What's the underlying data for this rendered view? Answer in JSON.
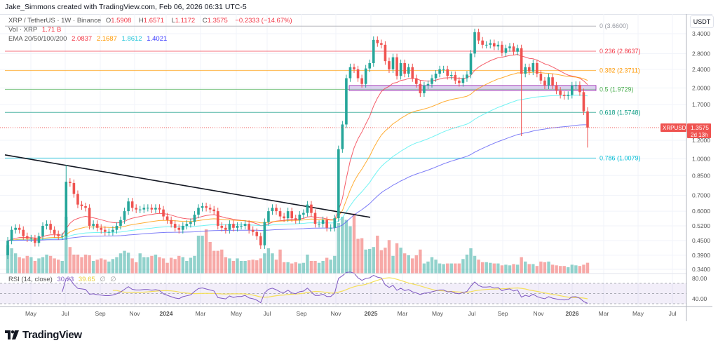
{
  "credit": "Jake_Simmons created with TradingView.com, Feb 06, 2026 06:31 UTC-5",
  "header": {
    "symbol": "XRP / TetherUS · 1W · Binance",
    "o_label": "O",
    "o": "1.5908",
    "h_label": "H",
    "h": "1.6571",
    "l_label": "L",
    "l": "1.1172",
    "c_label": "C",
    "c": "1.3575",
    "change": "−0.2333 (−14.67%)",
    "vol_label": "Vol · XRP",
    "vol": "1.71 B",
    "ema_label": "EMA 20/50/100/200",
    "ema20": "2.0837",
    "ema50": "2.1687",
    "ema100": "1.8612",
    "ema200": "1.4021"
  },
  "price_axis": {
    "currency": "USDT",
    "ticks": [
      "3.4000",
      "2.8000",
      "2.4000",
      "2.0000",
      "1.7000",
      "1.2000",
      "1.0000",
      "0.8500",
      "0.7000",
      "0.6000",
      "0.5200",
      "0.4500",
      "0.3900",
      "0.3400"
    ],
    "last_symbol": "XRPUSDT",
    "last_price": "1.3575",
    "countdown": "2d 13h"
  },
  "rsi": {
    "label": "RSI (14, close)",
    "value": "30.23",
    "ma_value": "39.65",
    "extra1": "∅",
    "extra2": "∅",
    "ticks": [
      "80.00",
      "40.00"
    ]
  },
  "time_axis": [
    "May",
    "Jul",
    "Sep",
    "Nov",
    "2024",
    "Mar",
    "May",
    "Jul",
    "Sep",
    "Nov",
    "2025",
    "Mar",
    "May",
    "Jul",
    "Sep",
    "Nov",
    "2026",
    "Mar",
    "May",
    "Jul"
  ],
  "fib_levels": [
    {
      "label": "0 (3.6600)",
      "price": 3.66,
      "color": "#9598a1"
    },
    {
      "label": "0.236 (2.8637)",
      "price": 2.8637,
      "color": "#f23645"
    },
    {
      "label": "0.382 (2.3711)",
      "price": 2.3711,
      "color": "#ff9800"
    },
    {
      "label": "0.5 (1.9729)",
      "price": 1.9729,
      "color": "#4caf50"
    },
    {
      "label": "0.618 (1.5748)",
      "price": 1.5748,
      "color": "#089981"
    },
    {
      "label": "0.786 (1.0079)",
      "price": 1.0079,
      "color": "#00bcd4"
    }
  ],
  "colors": {
    "up": "#26a69a",
    "down": "#ef5350",
    "ema20": "#f23645",
    "ema50": "#ff9800",
    "ema100": "#4ef0f0",
    "ema200": "#5b5bf5",
    "rsi": "#7e57c2",
    "rsi_ma": "#f5e05a",
    "trendline": "#131722",
    "zone": "#b39ddb"
  },
  "brand": "TradingView",
  "chart_data": {
    "type": "candlestick",
    "interval": "1W",
    "scale": "log",
    "ylim": [
      0.34,
      3.8
    ],
    "first_week": "2023-03-27",
    "first_open": 0.39,
    "closes": [
      0.45,
      0.5,
      0.51,
      0.5,
      0.47,
      0.46,
      0.46,
      0.44,
      0.47,
      0.52,
      0.53,
      0.5,
      0.48,
      0.47,
      0.47,
      0.8,
      0.79,
      0.71,
      0.64,
      0.63,
      0.62,
      0.52,
      0.53,
      0.51,
      0.5,
      0.49,
      0.49,
      0.5,
      0.52,
      0.55,
      0.6,
      0.66,
      0.62,
      0.61,
      0.61,
      0.62,
      0.62,
      0.61,
      0.62,
      0.61,
      0.57,
      0.55,
      0.53,
      0.51,
      0.5,
      0.52,
      0.53,
      0.54,
      0.58,
      0.62,
      0.63,
      0.62,
      0.61,
      0.6,
      0.52,
      0.51,
      0.5,
      0.53,
      0.51,
      0.52,
      0.52,
      0.53,
      0.5,
      0.49,
      0.47,
      0.43,
      0.54,
      0.6,
      0.62,
      0.6,
      0.57,
      0.56,
      0.6,
      0.56,
      0.55,
      0.58,
      0.59,
      0.64,
      0.59,
      0.53,
      0.53,
      0.55,
      0.51,
      0.51,
      0.56,
      1.1,
      1.4,
      2.2,
      2.45,
      2.4,
      2.2,
      2.08,
      2.42,
      2.55,
      3.2,
      3.1,
      3.05,
      2.6,
      2.4,
      2.7,
      2.25,
      2.55,
      2.3,
      2.45,
      2.2,
      2.08,
      1.9,
      2.05,
      2.08,
      2.2,
      2.3,
      2.4,
      2.4,
      2.25,
      2.27,
      2.15,
      2.1,
      2.2,
      2.28,
      2.8,
      3.45,
      3.18,
      3.05,
      3.05,
      3.1,
      3.0,
      3.05,
      2.82,
      2.95,
      3.0,
      2.85,
      2.95,
      2.3,
      2.45,
      2.35,
      2.55,
      2.3,
      2.15,
      2.05,
      2.22,
      2.05,
      1.95,
      1.87,
      1.85,
      1.87,
      2.05,
      2.06,
      1.92,
      1.5908,
      1.3575
    ],
    "notable_wicks": [
      {
        "week": "2023-07-10",
        "high": 0.94
      },
      {
        "week": "2025-10-06",
        "low": 1.25
      },
      {
        "week": "2026-02-02",
        "high": 1.6571,
        "low": 1.1172
      }
    ],
    "volume_b": [
      4.5,
      4.0,
      3.2,
      2.6,
      2.4,
      2.8,
      2.6,
      2.0,
      2.4,
      2.6,
      3.0,
      2.8,
      2.4,
      2.2,
      2.0,
      9.0,
      4.2,
      3.0,
      3.0,
      2.6,
      3.0,
      2.9,
      2.0,
      2.2,
      2.4,
      2.2,
      1.9,
      2.3,
      2.6,
      3.2,
      3.6,
      3.3,
      2.4,
      1.8,
      3.2,
      2.6,
      2.6,
      2.8,
      3.0,
      2.6,
      2.4,
      1.7,
      2.5,
      2.3,
      2.8,
      2.6,
      2.0,
      2.5,
      2.8,
      6.0,
      6.0,
      7.0,
      5.0,
      3.6,
      3.6,
      3.8,
      2.6,
      2.4,
      2.0,
      2.4,
      2.0,
      2.0,
      2.1,
      2.2,
      2.1,
      2.4,
      3.2,
      4.0,
      3.2,
      2.2,
      3.8,
      1.8,
      1.8,
      1.6,
      1.8,
      1.6,
      1.7,
      3.0,
      2.0,
      2.0,
      1.7,
      2.0,
      2.5,
      2.2,
      2.8,
      8.0,
      9.0,
      8.5,
      7.5,
      9.5,
      5.5,
      5.6,
      3.8,
      3.9,
      4.2,
      6.0,
      3.7,
      4.1,
      5.3,
      2.8,
      4.8,
      4.1,
      3.2,
      2.9,
      2.4,
      2.9,
      3.8,
      1.6,
      1.9,
      2.6,
      2.2,
      1.6,
      1.5,
      1.6,
      1.6,
      1.6,
      1.6,
      2.3,
      3.0,
      4.0,
      2.8,
      2.2,
      1.8,
      1.8,
      1.7,
      1.6,
      1.6,
      1.3,
      1.4,
      1.3,
      1.5,
      1.4,
      2.6,
      1.9,
      1.5,
      1.5,
      1.2,
      1.9,
      1.8,
      1.9,
      1.4,
      1.3,
      1.2,
      1.2,
      1.0,
      1.4,
      1.3,
      1.2,
      1.4,
      1.71
    ],
    "trendline": {
      "start_price": 1.04,
      "end_price": 0.565
    },
    "zone": {
      "top": 2.05,
      "bottom": 1.95
    },
    "rsi_levels": [
      70,
      50,
      30
    ]
  }
}
